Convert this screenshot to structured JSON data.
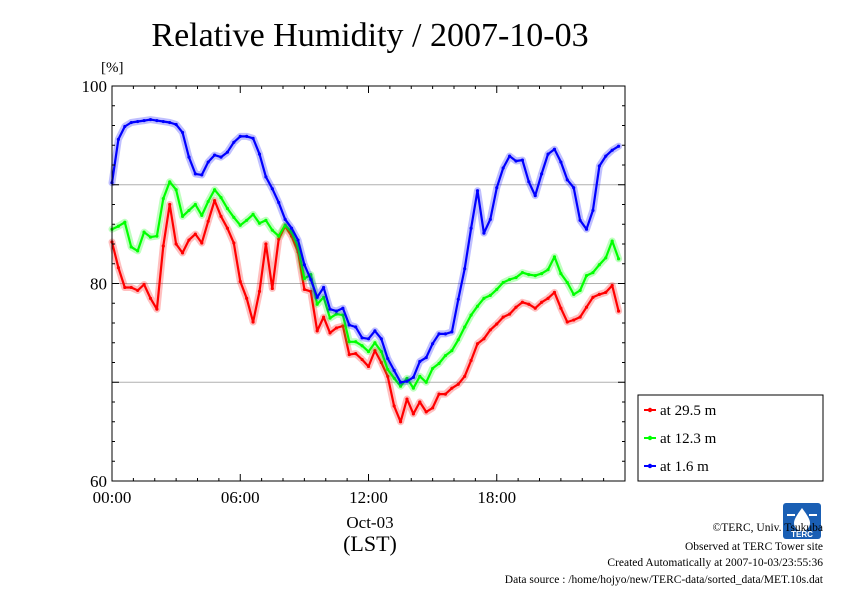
{
  "chart_data": {
    "type": "line",
    "title": "Relative Humidity / 2007-10-03",
    "ylabel": "[%]",
    "xlabel": "(LST)",
    "date_label": "Oct-03",
    "ylim": [
      60,
      100
    ],
    "yticks": [
      60,
      80,
      100
    ],
    "ytick_labels": [
      "60",
      "80",
      "100"
    ],
    "xlim": [
      0,
      24
    ],
    "xticks": [
      0,
      6,
      12,
      18
    ],
    "xtick_labels": [
      "00:00",
      "06:00",
      "12:00",
      "18:00"
    ],
    "grid": true,
    "legend_position": "right",
    "series": [
      {
        "name": "at 29.5 m",
        "color": "#ff0000",
        "x": [
          0.0,
          0.3,
          0.6,
          0.9,
          1.2,
          1.5,
          1.8,
          2.1,
          2.4,
          2.7,
          3.0,
          3.3,
          3.6,
          3.9,
          4.2,
          4.5,
          4.8,
          5.1,
          5.4,
          5.7,
          6.0,
          6.3,
          6.6,
          6.9,
          7.2,
          7.5,
          7.8,
          8.1,
          8.4,
          8.7,
          9.0,
          9.3,
          9.6,
          9.9,
          10.2,
          10.5,
          10.8,
          11.1,
          11.4,
          11.7,
          12.0,
          12.3,
          12.6,
          12.9,
          13.2,
          13.5,
          13.8,
          14.1,
          14.4,
          14.7,
          15.0,
          15.3,
          15.6,
          15.9,
          16.2,
          16.5,
          16.8,
          17.1,
          17.4,
          17.7,
          18.0,
          18.3,
          18.6,
          18.9,
          19.2,
          19.5,
          19.8,
          20.1,
          20.4,
          20.7,
          21.0,
          21.3,
          21.6,
          21.9,
          22.2,
          22.5,
          22.8,
          23.1,
          23.4,
          23.7
        ],
        "values": [
          84.2,
          81.6,
          79.6,
          79.6,
          79.3,
          79.9,
          78.5,
          77.4,
          83.8,
          88.0,
          84.0,
          83.1,
          84.4,
          85.0,
          84.1,
          86.3,
          88.4,
          86.8,
          85.6,
          84.1,
          80.2,
          78.5,
          76.1,
          79.2,
          84.0,
          79.5,
          84.5,
          85.8,
          84.8,
          83.2,
          79.4,
          79.2,
          75.2,
          76.6,
          75.0,
          75.5,
          75.7,
          72.8,
          72.9,
          72.3,
          71.6,
          73.2,
          72.0,
          70.6,
          67.6,
          66.0,
          68.3,
          66.8,
          68.0,
          67.0,
          67.4,
          68.8,
          68.8,
          69.4,
          69.8,
          70.6,
          72.2,
          73.9,
          74.4,
          75.3,
          75.9,
          76.6,
          76.9,
          77.6,
          78.1,
          77.9,
          77.5,
          78.1,
          78.5,
          79.1,
          77.5,
          76.1,
          76.3,
          76.6,
          77.6,
          78.6,
          78.9,
          79.1,
          79.8,
          77.2
        ]
      },
      {
        "name": "at 12.3 m",
        "color": "#00ff00",
        "x": [
          0.0,
          0.3,
          0.6,
          0.9,
          1.2,
          1.5,
          1.8,
          2.1,
          2.4,
          2.7,
          3.0,
          3.3,
          3.6,
          3.9,
          4.2,
          4.5,
          4.8,
          5.1,
          5.4,
          5.7,
          6.0,
          6.3,
          6.6,
          6.9,
          7.2,
          7.5,
          7.8,
          8.1,
          8.4,
          8.7,
          9.0,
          9.3,
          9.6,
          9.9,
          10.2,
          10.5,
          10.8,
          11.1,
          11.4,
          11.7,
          12.0,
          12.3,
          12.6,
          12.9,
          13.2,
          13.5,
          13.8,
          14.1,
          14.4,
          14.7,
          15.0,
          15.3,
          15.6,
          15.9,
          16.2,
          16.5,
          16.8,
          17.1,
          17.4,
          17.7,
          18.0,
          18.3,
          18.6,
          18.9,
          19.2,
          19.5,
          19.8,
          20.1,
          20.4,
          20.7,
          21.0,
          21.3,
          21.6,
          21.9,
          22.2,
          22.5,
          22.8,
          23.1,
          23.4,
          23.7
        ],
        "values": [
          85.5,
          85.8,
          86.2,
          83.7,
          83.3,
          85.2,
          84.7,
          84.8,
          88.6,
          90.3,
          89.5,
          86.8,
          87.4,
          88.0,
          86.9,
          88.3,
          89.5,
          88.7,
          87.6,
          86.7,
          85.9,
          86.4,
          87.0,
          86.1,
          86.4,
          85.4,
          84.8,
          85.9,
          85.2,
          83.7,
          80.5,
          80.9,
          77.9,
          78.6,
          76.5,
          76.9,
          76.8,
          74.1,
          74.1,
          73.7,
          73.1,
          74.0,
          73.1,
          71.3,
          70.4,
          69.6,
          70.4,
          69.4,
          70.6,
          70.0,
          71.4,
          71.9,
          72.7,
          73.2,
          74.3,
          75.6,
          76.8,
          77.7,
          78.5,
          78.8,
          79.4,
          80.1,
          80.4,
          80.6,
          81.1,
          80.9,
          80.8,
          81.0,
          81.4,
          82.7,
          81.0,
          80.1,
          78.9,
          79.3,
          80.8,
          81.1,
          81.9,
          82.6,
          84.3,
          82.5
        ]
      },
      {
        "name": "at 1.6 m",
        "color": "#0000ff",
        "x": [
          0.0,
          0.3,
          0.6,
          0.9,
          1.2,
          1.5,
          1.8,
          2.1,
          2.4,
          2.7,
          3.0,
          3.3,
          3.6,
          3.9,
          4.2,
          4.5,
          4.8,
          5.1,
          5.4,
          5.7,
          6.0,
          6.3,
          6.6,
          6.9,
          7.2,
          7.5,
          7.8,
          8.1,
          8.4,
          8.7,
          9.0,
          9.3,
          9.6,
          9.9,
          10.2,
          10.5,
          10.8,
          11.1,
          11.4,
          11.7,
          12.0,
          12.3,
          12.6,
          12.9,
          13.2,
          13.5,
          13.8,
          14.1,
          14.4,
          14.7,
          15.0,
          15.3,
          15.6,
          15.9,
          16.2,
          16.5,
          16.8,
          17.1,
          17.4,
          17.7,
          18.0,
          18.3,
          18.6,
          18.9,
          19.2,
          19.5,
          19.8,
          20.1,
          20.4,
          20.7,
          21.0,
          21.3,
          21.6,
          21.9,
          22.2,
          22.5,
          22.8,
          23.1,
          23.4,
          23.7
        ],
        "values": [
          90.2,
          94.6,
          95.9,
          96.3,
          96.4,
          96.5,
          96.6,
          96.5,
          96.4,
          96.3,
          96.1,
          95.3,
          92.8,
          91.1,
          91.0,
          92.3,
          93.0,
          92.8,
          93.3,
          94.3,
          94.9,
          94.9,
          94.7,
          93.1,
          90.8,
          89.6,
          88.2,
          86.5,
          85.6,
          84.4,
          81.9,
          80.4,
          78.6,
          79.6,
          77.4,
          77.2,
          77.5,
          75.8,
          75.6,
          74.5,
          74.4,
          75.2,
          74.4,
          72.4,
          71.2,
          70.0,
          70.1,
          70.5,
          72.1,
          72.5,
          73.9,
          74.9,
          74.9,
          75.1,
          78.4,
          81.5,
          85.6,
          89.4,
          85.1,
          86.5,
          89.7,
          91.7,
          92.9,
          92.4,
          92.5,
          90.3,
          88.9,
          91.1,
          93.1,
          93.6,
          92.3,
          90.5,
          89.7,
          86.4,
          85.5,
          87.4,
          91.9,
          92.9,
          93.5,
          93.9
        ]
      }
    ]
  },
  "footer": {
    "copyright": "©TERC, Univ. Tsukuba",
    "observed": "Observed at TERC Tower site",
    "created": "Created Automatically at 2007-10-03/23:55:36",
    "source": "Data source : /home/hojyo/new/TERC-data/sorted_data/MET.10s.dat"
  },
  "logo": {
    "text": "TERC",
    "color": "#1a5fb4"
  }
}
